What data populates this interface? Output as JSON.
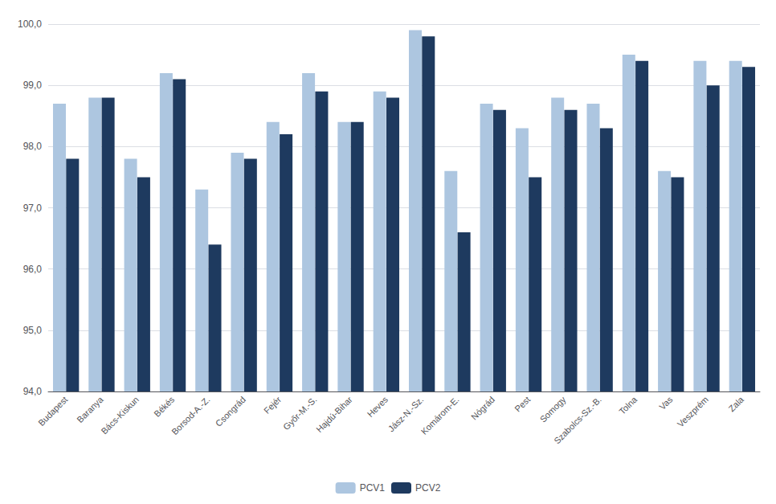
{
  "chart_data": {
    "type": "bar",
    "categories": [
      "Budapest",
      "Baranya",
      "Bács-Kiskun",
      "Békés",
      "Borsod-A.-Z.",
      "Csongrád",
      "Fejér",
      "Győr-M.-S.",
      "Hajdú-Bihar",
      "Heves",
      "Jász-N.-Sz.",
      "Komárom-E.",
      "Nógrád",
      "Pest",
      "Somogy",
      "Szabolcs-Sz.-B.",
      "Tolna",
      "Vas",
      "Veszprém",
      "Zala"
    ],
    "series": [
      {
        "name": "PCV1",
        "color": "#adc6e0",
        "values": [
          98.7,
          98.8,
          97.8,
          99.2,
          97.3,
          97.9,
          98.4,
          99.2,
          98.4,
          98.9,
          99.9,
          97.6,
          98.7,
          98.3,
          98.8,
          98.7,
          99.5,
          97.6,
          99.4,
          99.4
        ]
      },
      {
        "name": "PCV2",
        "color": "#1e3a5f",
        "values": [
          97.8,
          98.8,
          97.5,
          99.1,
          96.4,
          97.8,
          98.2,
          98.9,
          98.4,
          98.8,
          99.8,
          96.6,
          98.6,
          97.5,
          98.6,
          98.3,
          99.4,
          97.5,
          99.0,
          99.3
        ]
      }
    ],
    "ylim": [
      94.0,
      100.0
    ],
    "yticks": [
      {
        "value": 94.0,
        "label": "94,0"
      },
      {
        "value": 95.0,
        "label": "95,0"
      },
      {
        "value": 96.0,
        "label": "96,0"
      },
      {
        "value": 97.0,
        "label": "97,0"
      },
      {
        "value": 98.0,
        "label": "98,0"
      },
      {
        "value": 99.0,
        "label": "99,0"
      },
      {
        "value": 100.0,
        "label": "100,0"
      }
    ],
    "grid": true,
    "legend": "bottom"
  }
}
